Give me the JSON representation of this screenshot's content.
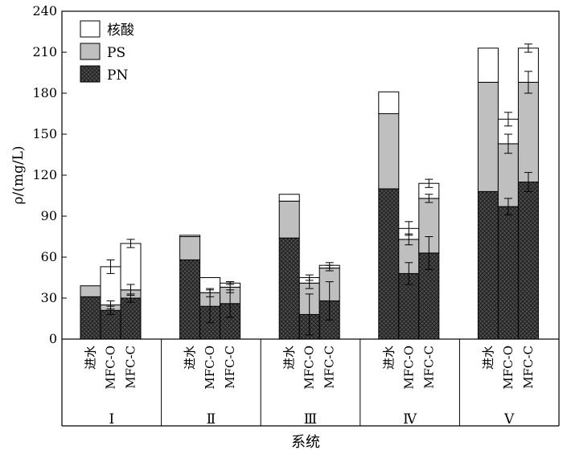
{
  "chart_data": {
    "type": "bar",
    "stacked": true,
    "ylabel": "ρ/(mg/L)",
    "xlabel": "系统",
    "ylim": [
      0,
      240
    ],
    "yticks": [
      0,
      30,
      60,
      90,
      120,
      150,
      180,
      210,
      240
    ],
    "legend_position": "top-left",
    "groups": [
      "Ⅰ",
      "Ⅱ",
      "Ⅲ",
      "Ⅳ",
      "Ⅴ"
    ],
    "categories": [
      "进水",
      "MFC-O",
      "MFC-C"
    ],
    "series": [
      {
        "name": "PN",
        "color": "#4d4d4d",
        "pattern": "crosshatch"
      },
      {
        "name": "PS",
        "color": "#bfbfbf"
      },
      {
        "name": "核酸",
        "color": "#ffffff"
      }
    ],
    "bars": [
      {
        "group": "Ⅰ",
        "category": "进水",
        "values": [
          31,
          8,
          0
        ],
        "errors": [
          0,
          0,
          0
        ]
      },
      {
        "group": "Ⅰ",
        "category": "MFC-O",
        "values": [
          21,
          4,
          28
        ],
        "errors": [
          3,
          3,
          5
        ]
      },
      {
        "group": "Ⅰ",
        "category": "MFC-C",
        "values": [
          30,
          6,
          34
        ],
        "errors": [
          3,
          4,
          3
        ]
      },
      {
        "group": "Ⅱ",
        "category": "进水",
        "values": [
          58,
          17,
          1
        ],
        "errors": [
          0,
          0,
          0
        ]
      },
      {
        "group": "Ⅱ",
        "category": "MFC-O",
        "values": [
          24,
          10,
          11
        ],
        "errors": [
          12,
          3,
          0
        ]
      },
      {
        "group": "Ⅱ",
        "category": "MFC-C",
        "values": [
          26,
          12,
          3
        ],
        "errors": [
          10,
          4,
          1
        ]
      },
      {
        "group": "Ⅲ",
        "category": "进水",
        "values": [
          74,
          27,
          5
        ],
        "errors": [
          0,
          0,
          0
        ]
      },
      {
        "group": "Ⅲ",
        "category": "MFC-O",
        "values": [
          18,
          23,
          4
        ],
        "errors": [
          15,
          4,
          2
        ]
      },
      {
        "group": "Ⅲ",
        "category": "MFC-C",
        "values": [
          28,
          24,
          2
        ],
        "errors": [
          14,
          2,
          2
        ]
      },
      {
        "group": "Ⅳ",
        "category": "进水",
        "values": [
          110,
          55,
          16
        ],
        "errors": [
          0,
          0,
          0
        ]
      },
      {
        "group": "Ⅳ",
        "category": "MFC-O",
        "values": [
          48,
          25,
          8
        ],
        "errors": [
          8,
          4,
          5
        ]
      },
      {
        "group": "Ⅳ",
        "category": "MFC-C",
        "values": [
          63,
          40,
          11
        ],
        "errors": [
          12,
          3,
          3
        ]
      },
      {
        "group": "Ⅴ",
        "category": "进水",
        "values": [
          108,
          80,
          25
        ],
        "errors": [
          0,
          0,
          0
        ]
      },
      {
        "group": "Ⅴ",
        "category": "MFC-O",
        "values": [
          97,
          46,
          18
        ],
        "errors": [
          6,
          7,
          5
        ]
      },
      {
        "group": "Ⅴ",
        "category": "MFC-C",
        "values": [
          115,
          73,
          25
        ],
        "errors": [
          7,
          8,
          3
        ]
      }
    ]
  }
}
